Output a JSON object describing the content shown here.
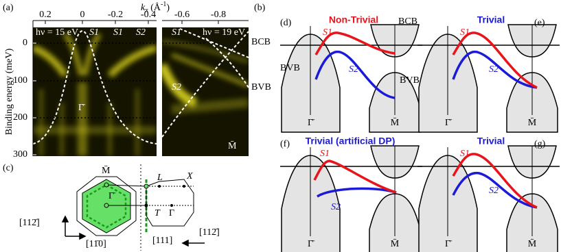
{
  "panel_labels": [
    "(a)",
    "(b)",
    "(c)"
  ],
  "arpes": {
    "k_symbol": "k",
    "k_sub": "x",
    "k_unit": "(Å",
    "k_exp": "-1",
    "k_close": ")",
    "y_label": "Binding energy (meV)",
    "y_ticks": [
      "0",
      "100",
      "200",
      "300"
    ],
    "left_ticks": [
      "0.2",
      "0",
      "-0.2",
      "-0.4"
    ],
    "left_photon": "hν = 15 eV",
    "left_bands": [
      "S1",
      "S1",
      "S2"
    ],
    "gamma": "Γ̄",
    "right_ticks": [
      "-0.6",
      "-0.8"
    ],
    "right_photon": "hν = 19 eV",
    "right_s1": "S1",
    "right_s2": "S2",
    "m": "M̄",
    "bcb": "BCB",
    "bvb": "BVB"
  },
  "bz": {
    "m": "M̄",
    "gamma_bar": "Γ̄",
    "l": "L",
    "x": "X",
    "t": "T",
    "gamma": "Γ",
    "dir_left": "[112̄]",
    "dir_bottom": "[11̄0]",
    "dir_111": "[111]",
    "dir_right": "[112̄]"
  },
  "schematics": [
    {
      "label": "(d)",
      "title": "Non-Trivial",
      "title_color": "#e8141b",
      "s1": "S1",
      "s2": "S2",
      "bcb": "BCB",
      "bvb_left": "BVB",
      "bvb_right": "BVB",
      "gamma": "Γ̄",
      "m": "M̄"
    },
    {
      "label": "(e)",
      "title": "Trivial",
      "title_color": "#1a1ad8",
      "s1": "S1",
      "s2": "S2",
      "gamma": "Γ̄",
      "m": "M̄"
    },
    {
      "label": "(f)",
      "title": "Trivial (artificial DP)",
      "title_color": "#1a1ad8",
      "s1": "S1",
      "s2": "S2",
      "gamma": "Γ̄",
      "m": "M̄"
    },
    {
      "label": "(g)",
      "title": "Trivial",
      "title_color": "#1a1ad8",
      "s1": "S1",
      "s2": "S2",
      "gamma": "Γ̄",
      "m": "M̄"
    }
  ]
}
